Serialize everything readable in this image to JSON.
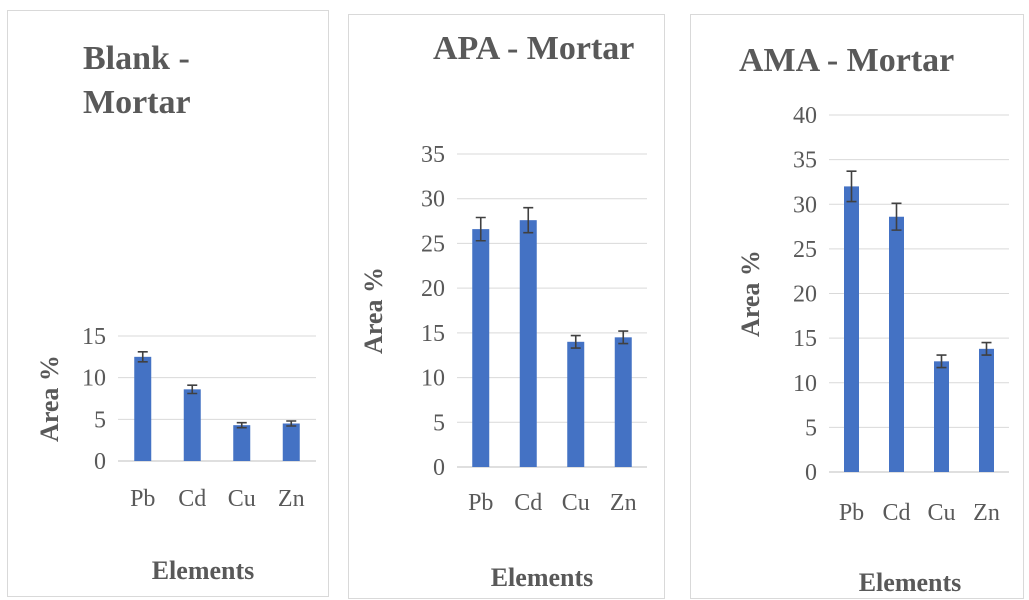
{
  "chart_data": [
    {
      "type": "bar",
      "title_lines": [
        "Blank -",
        "Mortar"
      ],
      "xlabel": "Elements",
      "ylabel": "Area %",
      "categories": [
        "Pb",
        "Cd",
        "Cu",
        "Zn"
      ],
      "values": [
        12.5,
        8.6,
        4.3,
        4.5
      ],
      "errors": [
        0.6,
        0.5,
        0.3,
        0.3
      ],
      "ylim": [
        0,
        15
      ],
      "yticks": [
        0,
        5,
        10,
        15
      ],
      "bar_color": "#4472c4",
      "grid": true
    },
    {
      "type": "bar",
      "title_lines": [
        "APA - Mortar"
      ],
      "xlabel": "Elements",
      "ylabel": "Area %",
      "categories": [
        "Pb",
        "Cd",
        "Cu",
        "Zn"
      ],
      "values": [
        26.6,
        27.6,
        14.0,
        14.5
      ],
      "errors": [
        1.3,
        1.4,
        0.7,
        0.7
      ],
      "ylim": [
        0,
        35
      ],
      "yticks": [
        0,
        5,
        10,
        15,
        20,
        25,
        30,
        35
      ],
      "bar_color": "#4472c4",
      "grid": true
    },
    {
      "type": "bar",
      "title_lines": [
        "AMA - Mortar"
      ],
      "xlabel": "Elements",
      "ylabel": "Area %",
      "categories": [
        "Pb",
        "Cd",
        "Cu",
        "Zn"
      ],
      "values": [
        32.0,
        28.6,
        12.4,
        13.8
      ],
      "errors": [
        1.7,
        1.5,
        0.7,
        0.7
      ],
      "ylim": [
        0,
        40
      ],
      "yticks": [
        0,
        5,
        10,
        15,
        20,
        25,
        30,
        35,
        40
      ],
      "bar_color": "#4472c4",
      "grid": true
    }
  ]
}
